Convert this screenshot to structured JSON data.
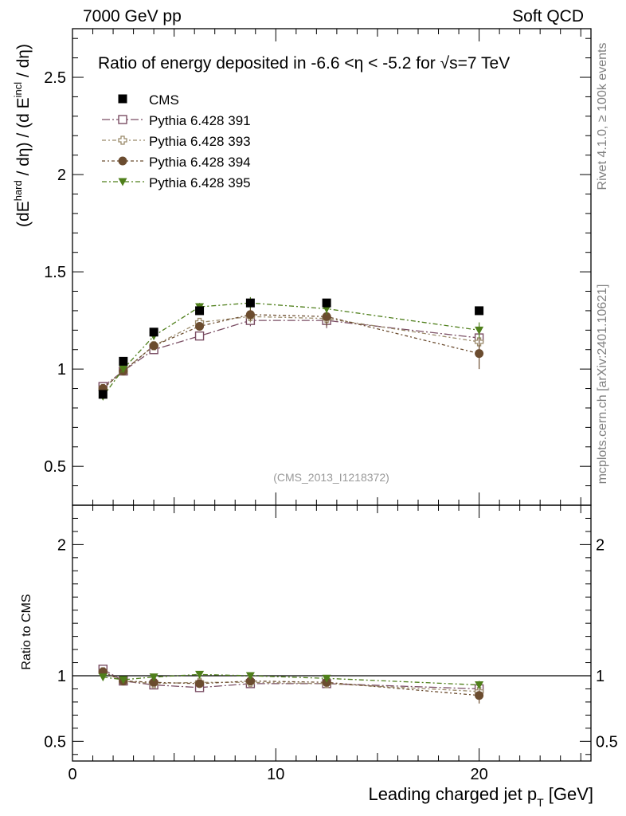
{
  "header": {
    "left": "7000 GeV pp",
    "right": "Soft QCD"
  },
  "side_text": {
    "rivet": "Rivet 4.1.0, ≥ 100k events",
    "mcplots": "mcplots.cern.ch [arXiv:2401.10621]"
  },
  "watermark": "(CMS_2013_I1218372)",
  "chart_data": {
    "type": "scatter",
    "title_parts": {
      "prefix": "Ratio of energy deposited in -6.6 <",
      "eta": "η",
      "middle": " < -5.2 for ",
      "sqrt": "√",
      "suffix": "s=7 TeV"
    },
    "ylabel_parts": {
      "open": "(dE",
      "sup1": "hard",
      "mid": " / dη) / (d E",
      "sup2": "incl",
      "close": " / dη)"
    },
    "xlabel_parts": {
      "main": "Leading charged jet p",
      "sub": "T",
      "unit": " [GeV]"
    },
    "ratio_ylabel": "Ratio to CMS",
    "xlim": [
      0,
      25.5
    ],
    "ylim": [
      0.3,
      2.75
    ],
    "ratio_ylim": [
      0.35,
      2.3
    ],
    "xticks": [
      0,
      10,
      20
    ],
    "xtick_labels": [
      "0",
      "10",
      "20"
    ],
    "yticks": [
      0.5,
      1,
      1.5,
      2,
      2.5
    ],
    "ytick_labels": [
      "0.5",
      "1",
      "1.5",
      "2",
      "2.5"
    ],
    "ratio_yticks": [
      0.5,
      1,
      2
    ],
    "ratio_ytick_labels": [
      "0.5",
      "1",
      "2"
    ],
    "ratio_reference": 1,
    "x": [
      1.5,
      2.5,
      4.0,
      6.25,
      8.75,
      12.5,
      20.0
    ],
    "data": {
      "name": "CMS",
      "values": [
        0.87,
        1.04,
        1.19,
        1.3,
        1.34,
        1.34,
        1.3
      ]
    },
    "series": [
      {
        "name": "Pythia 6.428 391",
        "color": "#7a4e64",
        "marker": "open-square",
        "dash": "10,3,2,3",
        "values": [
          0.91,
          0.99,
          1.1,
          1.17,
          1.25,
          1.25,
          1.16
        ],
        "errors": [
          0.01,
          0.01,
          0.01,
          0.02,
          0.03,
          0.04,
          0.05
        ],
        "ratio": [
          1.05,
          0.96,
          0.93,
          0.91,
          0.94,
          0.94,
          0.9
        ]
      },
      {
        "name": "Pythia 6.428 393",
        "color": "#9a8a6a",
        "marker": "open-cross",
        "dash": "5,3,2,3",
        "values": [
          0.9,
          0.99,
          1.12,
          1.24,
          1.27,
          1.26,
          1.14
        ],
        "errors": [
          0.01,
          0.01,
          0.01,
          0.02,
          0.03,
          0.04,
          0.05
        ],
        "ratio": [
          1.03,
          0.96,
          0.94,
          0.95,
          0.95,
          0.94,
          0.88
        ]
      },
      {
        "name": "Pythia 6.428 394",
        "color": "#6b4c2f",
        "marker": "circle",
        "dash": "4,3,2,3",
        "values": [
          0.9,
          0.99,
          1.12,
          1.22,
          1.28,
          1.27,
          1.08
        ],
        "errors": [
          0.01,
          0.01,
          0.01,
          0.02,
          0.03,
          0.05,
          0.08
        ],
        "ratio": [
          1.03,
          0.96,
          0.95,
          0.94,
          0.96,
          0.95,
          0.85
        ]
      },
      {
        "name": "Pythia 6.428 395",
        "color": "#4f7f1b",
        "marker": "triangle-down",
        "dash": "6,3,2,3",
        "values": [
          0.86,
          1.0,
          1.17,
          1.32,
          1.34,
          1.31,
          1.2
        ],
        "errors": [
          0.01,
          0.01,
          0.01,
          0.02,
          0.03,
          0.03,
          0.04
        ],
        "ratio": [
          0.99,
          0.97,
          0.99,
          1.01,
          1.0,
          0.98,
          0.93
        ]
      }
    ]
  }
}
